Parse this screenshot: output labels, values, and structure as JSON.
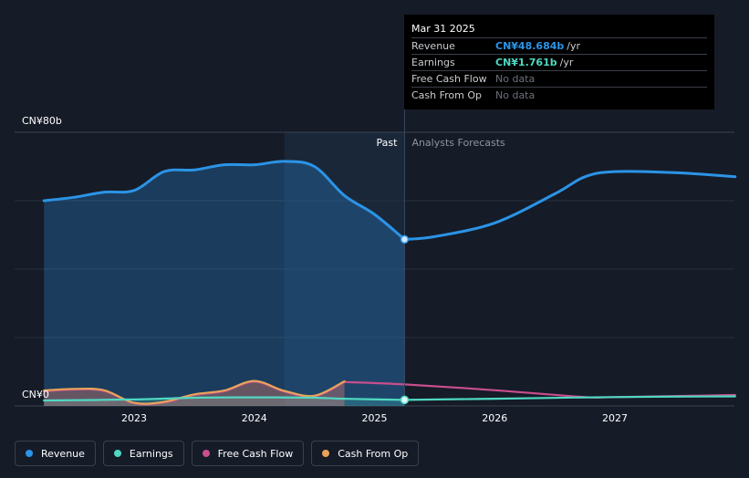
{
  "chart_data": {
    "type": "line",
    "x_ticks": [
      "2023",
      "2024",
      "2025",
      "2026",
      "2027"
    ],
    "y_ticks": [
      "CN¥0",
      "CN¥80b"
    ],
    "ylim": [
      0,
      80
    ],
    "unit": "CN¥ b",
    "regions": {
      "past": "Past",
      "forecast": "Analysts Forecasts"
    },
    "series": [
      {
        "name": "Revenue",
        "color": "#2b94e6",
        "past": [
          [
            2022.25,
            60.0
          ],
          [
            2022.5,
            61.0
          ],
          [
            2022.75,
            62.5
          ],
          [
            2023.0,
            63.0
          ],
          [
            2023.25,
            68.5
          ],
          [
            2023.5,
            69.0
          ],
          [
            2023.75,
            70.5
          ],
          [
            2024.0,
            70.5
          ],
          [
            2024.25,
            71.5
          ],
          [
            2024.5,
            70.0
          ],
          [
            2024.75,
            61.5
          ],
          [
            2025.0,
            56.0
          ],
          [
            2025.25,
            48.684
          ]
        ],
        "forecast": [
          [
            2025.25,
            48.684
          ],
          [
            2025.5,
            49.5
          ],
          [
            2026.0,
            53.5
          ],
          [
            2026.5,
            62.0
          ],
          [
            2026.75,
            67.0
          ],
          [
            2027.0,
            68.5
          ],
          [
            2027.5,
            68.2
          ],
          [
            2028.0,
            67.0
          ]
        ]
      },
      {
        "name": "Earnings",
        "color": "#4fd8c2",
        "past": [
          [
            2022.25,
            1.6
          ],
          [
            2023.0,
            1.9
          ],
          [
            2023.5,
            2.4
          ],
          [
            2024.0,
            2.5
          ],
          [
            2024.5,
            2.4
          ],
          [
            2024.75,
            2.1
          ],
          [
            2025.25,
            1.761
          ]
        ],
        "forecast": [
          [
            2025.25,
            1.761
          ],
          [
            2026.0,
            2.1
          ],
          [
            2027.0,
            2.6
          ],
          [
            2028.0,
            2.8
          ]
        ]
      },
      {
        "name": "Free Cash Flow",
        "color": "#c94e8e",
        "past": [
          [
            2022.25,
            4.3
          ],
          [
            2022.5,
            4.8
          ],
          [
            2022.75,
            4.4
          ],
          [
            2023.0,
            0.8
          ],
          [
            2023.25,
            1.0
          ],
          [
            2023.5,
            3.2
          ],
          [
            2023.75,
            4.3
          ],
          [
            2024.0,
            7.1
          ],
          [
            2024.25,
            4.2
          ],
          [
            2024.5,
            2.8
          ],
          [
            2024.75,
            7.0
          ]
        ],
        "forecast": [
          [
            2024.75,
            7.0
          ],
          [
            2025.25,
            6.3
          ],
          [
            2026.0,
            4.6
          ],
          [
            2026.75,
            2.6
          ],
          [
            2027.0,
            2.6
          ],
          [
            2028.0,
            3.2
          ]
        ]
      },
      {
        "name": "Cash From Op",
        "color": "#e8a35a",
        "past": [
          [
            2022.25,
            4.5
          ],
          [
            2022.5,
            5.0
          ],
          [
            2022.75,
            4.6
          ],
          [
            2023.0,
            0.9
          ],
          [
            2023.25,
            1.2
          ],
          [
            2023.5,
            3.4
          ],
          [
            2023.75,
            4.5
          ],
          [
            2024.0,
            7.3
          ],
          [
            2024.25,
            4.4
          ],
          [
            2024.5,
            3.0
          ],
          [
            2024.75,
            7.2
          ]
        ],
        "forecast": []
      }
    ],
    "tooltip": {
      "date": "Mar 31 2025",
      "rows": [
        {
          "label": "Revenue",
          "value": "CN¥48.684b",
          "unit": "/yr",
          "color": "#2b94e6"
        },
        {
          "label": "Earnings",
          "value": "CN¥1.761b",
          "unit": "/yr",
          "color": "#4fd8c2"
        },
        {
          "label": "Free Cash Flow",
          "nodata": "No data"
        },
        {
          "label": "Cash From Op",
          "nodata": "No data"
        }
      ]
    },
    "legend": [
      {
        "label": "Revenue",
        "color": "#2b94e6"
      },
      {
        "label": "Earnings",
        "color": "#4fd8c2"
      },
      {
        "label": "Free Cash Flow",
        "color": "#c94e8e"
      },
      {
        "label": "Cash From Op",
        "color": "#e8a35a"
      }
    ]
  }
}
